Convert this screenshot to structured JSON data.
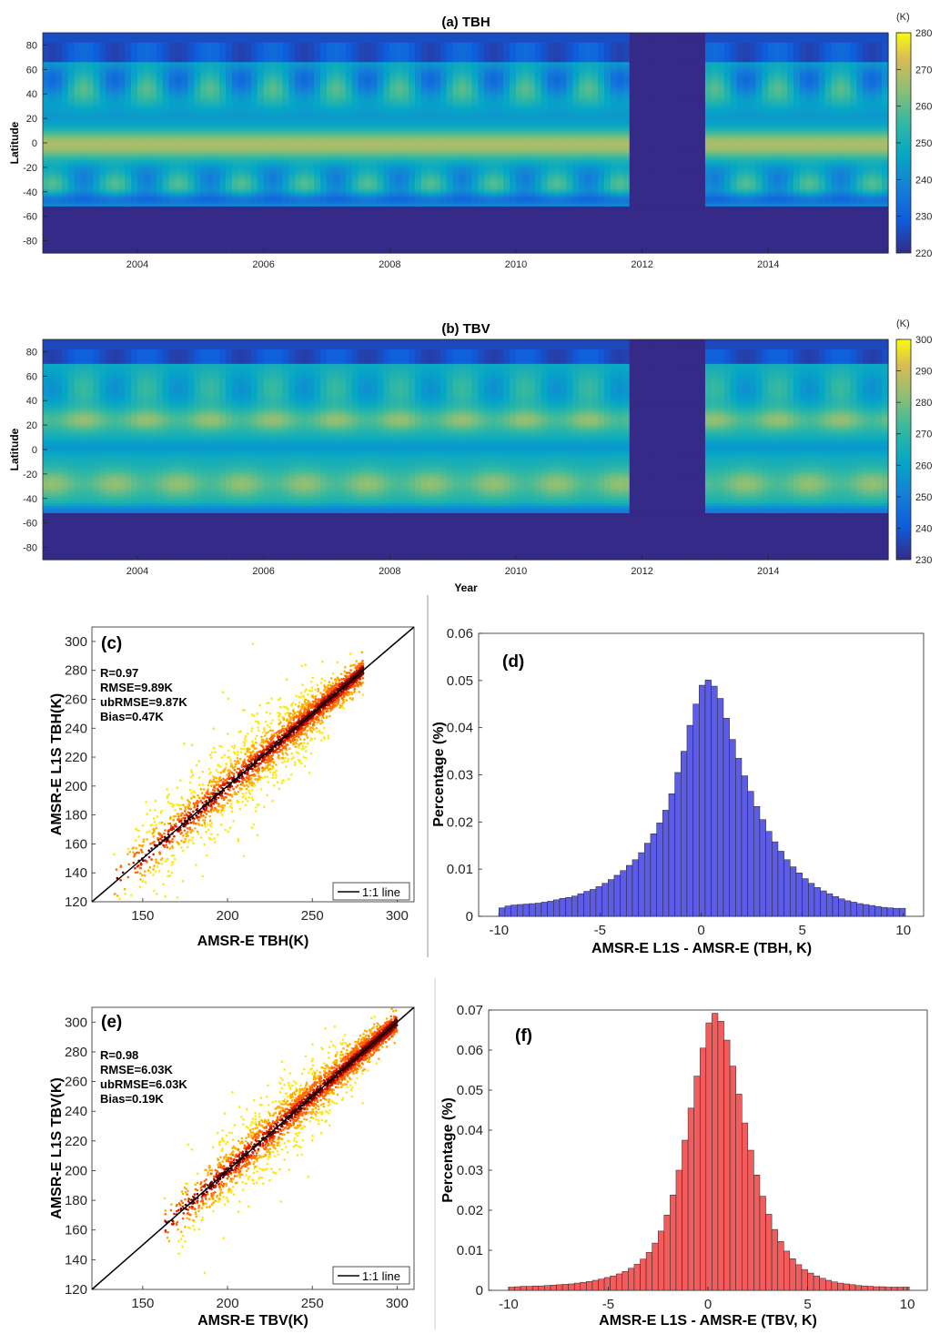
{
  "chart_data": [
    {
      "panel": "(a)",
      "type": "heatmap",
      "title": "(a) TBH",
      "ylabel": "Latitude",
      "xlabel": "",
      "x_ticks": [
        "2004",
        "2006",
        "2008",
        "2010",
        "2012",
        "2014"
      ],
      "x_range": [
        2002.5,
        2015.9
      ],
      "y_ticks": [
        "80",
        "60",
        "40",
        "20",
        "0",
        "-20",
        "-40",
        "-60",
        "-80"
      ],
      "y_range": [
        -90,
        90
      ],
      "colorbar": {
        "unit": "(K)",
        "min": 220,
        "max": 280,
        "ticks": [
          "280",
          "270",
          "260",
          "250",
          "240",
          "230",
          "220"
        ]
      },
      "gap_years": [
        2011.85,
        2013.0
      ]
    },
    {
      "panel": "(b)",
      "type": "heatmap",
      "title": "(b) TBV",
      "ylabel": "Latitude",
      "xlabel": "Year",
      "x_ticks": [
        "2004",
        "2006",
        "2008",
        "2010",
        "2012",
        "2014"
      ],
      "x_range": [
        2002.5,
        2015.9
      ],
      "y_ticks": [
        "80",
        "60",
        "40",
        "20",
        "0",
        "-20",
        "-40",
        "-60",
        "-80"
      ],
      "y_range": [
        -90,
        90
      ],
      "colorbar": {
        "unit": "(K)",
        "min": 230,
        "max": 300,
        "ticks": [
          "300",
          "290",
          "280",
          "270",
          "260",
          "250",
          "240",
          "230"
        ]
      },
      "gap_years": [
        2011.85,
        2013.0
      ]
    },
    {
      "panel": "(c)",
      "type": "scatter",
      "label": "(c)",
      "xlabel": "AMSR-E TBH(K)",
      "ylabel": "AMSR-E L1S TBH(K)",
      "xlim": [
        120,
        310
      ],
      "ylim": [
        120,
        310
      ],
      "x_ticks": [
        "150",
        "200",
        "250",
        "300"
      ],
      "y_ticks": [
        "300",
        "280",
        "260",
        "240",
        "220",
        "200",
        "180",
        "160",
        "140",
        "120"
      ],
      "stats": [
        "R=0.97",
        "RMSE=9.89K",
        "ubRMSE=9.87K",
        "Bias=0.47K"
      ],
      "legend": "1:1 line",
      "density_range": [
        130,
        280
      ]
    },
    {
      "panel": "(d)",
      "type": "bar",
      "label": "(d)",
      "xlabel": "AMSR-E L1S - AMSR-E (TBH, K)",
      "ylabel": "Percentage (%)",
      "xlim": [
        -11,
        11
      ],
      "ylim": [
        0,
        0.06
      ],
      "x_ticks": [
        "-10",
        "-5",
        "0",
        "5",
        "10"
      ],
      "y_ticks": [
        "0.06",
        "0.05",
        "0.04",
        "0.03",
        "0.02",
        "0.01",
        "0"
      ],
      "bin_width": 0.3,
      "bin_start": -10,
      "values": [
        0.0018,
        0.0022,
        0.0024,
        0.0025,
        0.0026,
        0.0027,
        0.0028,
        0.003,
        0.0032,
        0.0035,
        0.0038,
        0.004,
        0.0043,
        0.0048,
        0.0053,
        0.0057,
        0.0063,
        0.007,
        0.0078,
        0.0087,
        0.0097,
        0.0108,
        0.012,
        0.0135,
        0.0155,
        0.0175,
        0.0198,
        0.0225,
        0.026,
        0.0305,
        0.035,
        0.0405,
        0.045,
        0.049,
        0.0501,
        0.0488,
        0.0462,
        0.042,
        0.0375,
        0.0335,
        0.0298,
        0.0265,
        0.0233,
        0.0205,
        0.018,
        0.0158,
        0.0138,
        0.012,
        0.0105,
        0.0092,
        0.008,
        0.007,
        0.0061,
        0.0054,
        0.0048,
        0.0042,
        0.0037,
        0.0033,
        0.003,
        0.0027,
        0.0025,
        0.0023,
        0.0021,
        0.0019,
        0.0018,
        0.0017,
        0.0017
      ],
      "color": "#5c5ce6"
    },
    {
      "panel": "(e)",
      "type": "scatter",
      "label": "(e)",
      "xlabel": "AMSR-E TBV(K)",
      "ylabel": "AMSR-E L1S TBV(K)",
      "xlim": [
        120,
        310
      ],
      "ylim": [
        120,
        310
      ],
      "x_ticks": [
        "150",
        "200",
        "250",
        "300"
      ],
      "y_ticks": [
        "300",
        "280",
        "260",
        "240",
        "220",
        "200",
        "180",
        "160",
        "140",
        "120"
      ],
      "stats": [
        "R=0.98",
        "RMSE=6.03K",
        "ubRMSE=6.03K",
        "Bias=0.19K"
      ],
      "legend": "1:1 line",
      "density_range": [
        160,
        300
      ]
    },
    {
      "panel": "(f)",
      "type": "bar",
      "label": "(f)",
      "xlabel": "AMSR-E L1S - AMSR-E (TBV, K)",
      "ylabel": "Percentage (%)",
      "xlim": [
        -11,
        11
      ],
      "ylim": [
        0,
        0.07
      ],
      "x_ticks": [
        "-10",
        "-5",
        "0",
        "5",
        "10"
      ],
      "y_ticks": [
        "0.07",
        "0.06",
        "0.05",
        "0.04",
        "0.03",
        "0.02",
        "0.01",
        "0"
      ],
      "bin_width": 0.3,
      "bin_start": -10,
      "values": [
        0.0008,
        0.0009,
        0.001,
        0.001,
        0.0011,
        0.0011,
        0.0012,
        0.0013,
        0.0014,
        0.0015,
        0.0016,
        0.0018,
        0.002,
        0.0022,
        0.0025,
        0.0028,
        0.0032,
        0.0036,
        0.0041,
        0.0047,
        0.0055,
        0.0065,
        0.0078,
        0.0095,
        0.0118,
        0.0148,
        0.0188,
        0.0238,
        0.03,
        0.0375,
        0.0455,
        0.0535,
        0.0605,
        0.0668,
        0.0692,
        0.0672,
        0.0625,
        0.056,
        0.049,
        0.0418,
        0.035,
        0.0288,
        0.0235,
        0.019,
        0.0152,
        0.0122,
        0.0098,
        0.0079,
        0.0064,
        0.0052,
        0.0043,
        0.0036,
        0.003,
        0.0025,
        0.0021,
        0.0018,
        0.0016,
        0.0014,
        0.0012,
        0.0011,
        0.001,
        0.0009,
        0.0009,
        0.0008,
        0.0008,
        0.0008,
        0.0008
      ],
      "color": "#f25c5c"
    }
  ]
}
